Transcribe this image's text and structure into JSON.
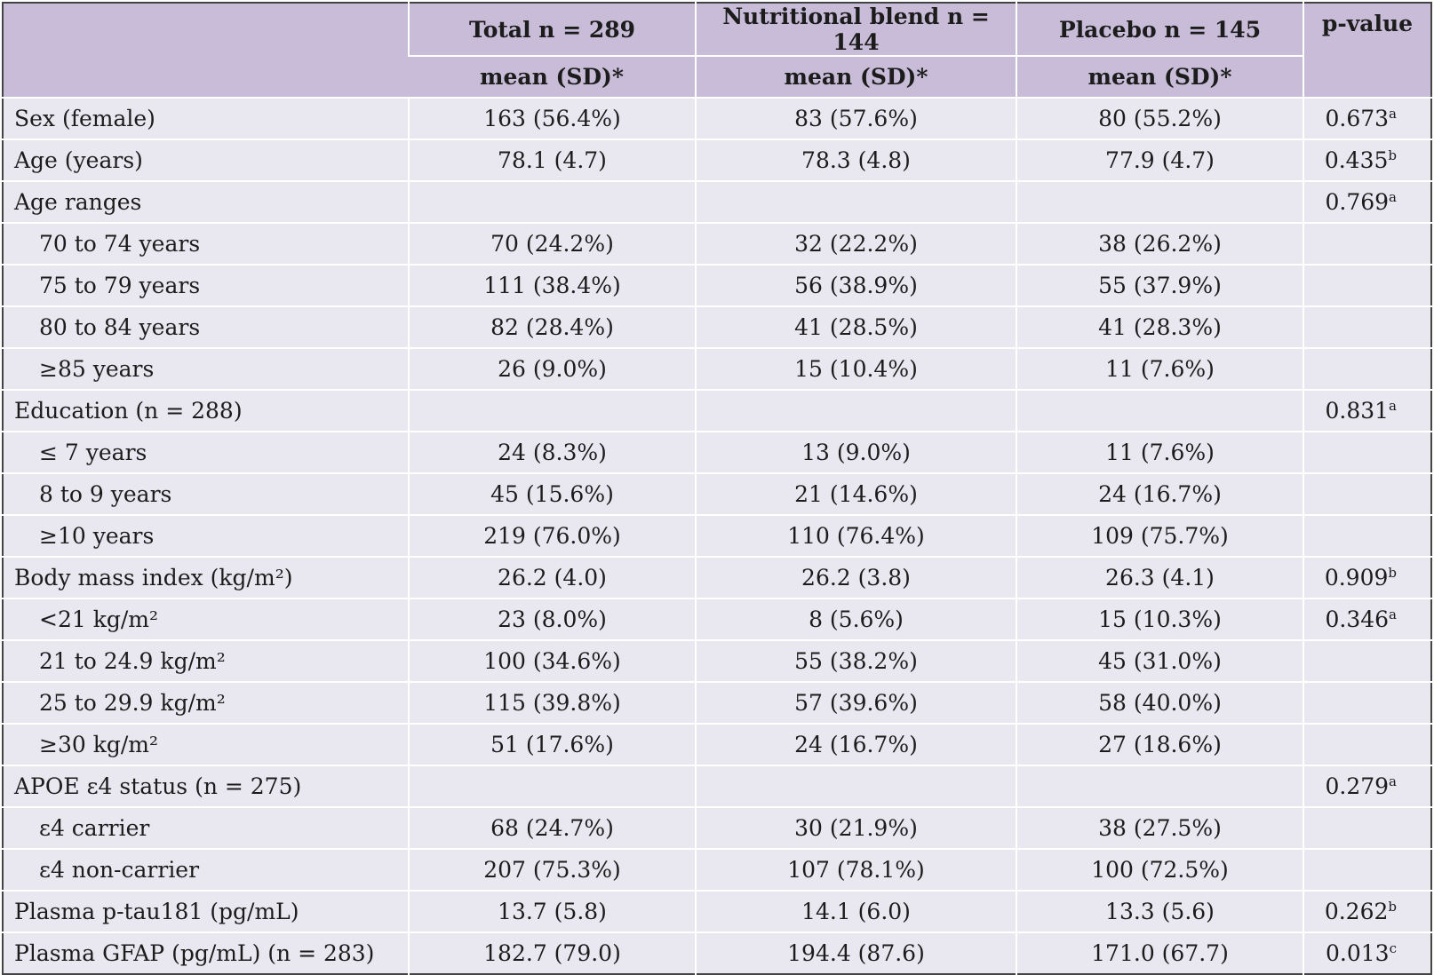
{
  "header": {
    "total_label": "Total n = 289",
    "blend_label": "Nutritional blend n = 144",
    "placebo_label": "Placebo n = 145",
    "pvalue_label": "p-value",
    "sub_label": "mean (SD)*"
  },
  "rows": [
    {
      "label": "Sex (female)",
      "indent": false,
      "total": "163 (56.4%)",
      "blend": "83 (57.6%)",
      "placebo": "80 (55.2%)",
      "p": "0.673",
      "sup": "a"
    },
    {
      "label": "Age (years)",
      "indent": false,
      "total": "78.1 (4.7)",
      "blend": "78.3 (4.8)",
      "placebo": "77.9 (4.7)",
      "p": "0.435",
      "sup": "b"
    },
    {
      "label": "Age ranges",
      "indent": false,
      "total": "",
      "blend": "",
      "placebo": "",
      "p": "0.769",
      "sup": "a"
    },
    {
      "label": "70 to 74 years",
      "indent": true,
      "total": "70 (24.2%)",
      "blend": "32 (22.2%)",
      "placebo": "38 (26.2%)",
      "p": "",
      "sup": ""
    },
    {
      "label": "75 to 79 years",
      "indent": true,
      "total": "111 (38.4%)",
      "blend": "56 (38.9%)",
      "placebo": "55 (37.9%)",
      "p": "",
      "sup": ""
    },
    {
      "label": "80 to 84 years",
      "indent": true,
      "total": "82 (28.4%)",
      "blend": "41 (28.5%)",
      "placebo": "41 (28.3%)",
      "p": "",
      "sup": ""
    },
    {
      "label": "≥85 years",
      "indent": true,
      "total": "26 (9.0%)",
      "blend": "15 (10.4%)",
      "placebo": "11 (7.6%)",
      "p": "",
      "sup": ""
    },
    {
      "label": "Education (n = 288)",
      "indent": false,
      "total": "",
      "blend": "",
      "placebo": "",
      "p": "0.831",
      "sup": "a"
    },
    {
      "label": "≤ 7 years",
      "indent": true,
      "total": "24 (8.3%)",
      "blend": "13 (9.0%)",
      "placebo": "11 (7.6%)",
      "p": "",
      "sup": ""
    },
    {
      "label": "8 to 9 years",
      "indent": true,
      "total": "45 (15.6%)",
      "blend": "21 (14.6%)",
      "placebo": "24 (16.7%)",
      "p": "",
      "sup": ""
    },
    {
      "label": "≥10 years",
      "indent": true,
      "total": "219 (76.0%)",
      "blend": "110 (76.4%)",
      "placebo": "109 (75.7%)",
      "p": "",
      "sup": ""
    },
    {
      "label": "Body mass index (kg/m²)",
      "indent": false,
      "total": "26.2 (4.0)",
      "blend": "26.2 (3.8)",
      "placebo": "26.3 (4.1)",
      "p": "0.909",
      "sup": "b"
    },
    {
      "label": "<21 kg/m²",
      "indent": true,
      "total": "23 (8.0%)",
      "blend": "8 (5.6%)",
      "placebo": "15 (10.3%)",
      "p": "0.346",
      "sup": "a"
    },
    {
      "label": "21 to 24.9 kg/m²",
      "indent": true,
      "total": "100 (34.6%)",
      "blend": "55 (38.2%)",
      "placebo": "45 (31.0%)",
      "p": "",
      "sup": ""
    },
    {
      "label": "25 to 29.9 kg/m²",
      "indent": true,
      "total": "115 (39.8%)",
      "blend": "57 (39.6%)",
      "placebo": "58 (40.0%)",
      "p": "",
      "sup": ""
    },
    {
      "label": "≥30 kg/m²",
      "indent": true,
      "total": "51 (17.6%)",
      "blend": "24 (16.7%)",
      "placebo": "27 (18.6%)",
      "p": "",
      "sup": ""
    },
    {
      "label": "APOE ε4 status (n = 275)",
      "indent": false,
      "total": "",
      "blend": "",
      "placebo": "",
      "p": "0.279",
      "sup": "a"
    },
    {
      "label": "ε4 carrier",
      "indent": true,
      "total": "68 (24.7%)",
      "blend": "30 (21.9%)",
      "placebo": "38 (27.5%)",
      "p": "",
      "sup": ""
    },
    {
      "label": "ε4 non-carrier",
      "indent": true,
      "total": "207 (75.3%)",
      "blend": "107 (78.1%)",
      "placebo": "100 (72.5%)",
      "p": "",
      "sup": ""
    },
    {
      "label": "Plasma p-tau181 (pg/mL)",
      "indent": false,
      "total": "13.7 (5.8)",
      "blend": "14.1 (6.0)",
      "placebo": "13.3 (5.6)",
      "p": "0.262",
      "sup": "b"
    },
    {
      "label": "Plasma GFAP (pg/mL) (n = 283)",
      "indent": false,
      "total": "182.7 (79.0)",
      "blend": "194.4 (87.6)",
      "placebo": "171.0 (67.7)",
      "p": "0.013",
      "sup": "c"
    }
  ],
  "colors": {
    "header_bg": "#c8bcd8",
    "cell_bg": "#e9e7f0",
    "border": "#ffffff",
    "text": "#1c1c1c"
  }
}
